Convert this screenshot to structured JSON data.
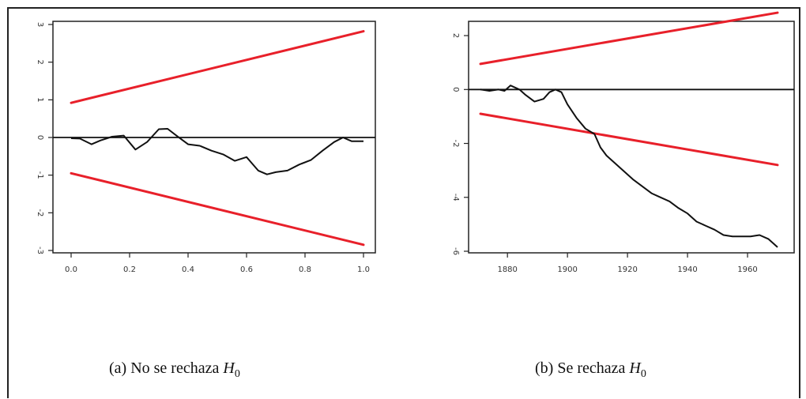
{
  "captions": {
    "a": {
      "prefix": "(a) No se rechaza ",
      "var": "H",
      "sub": "0"
    },
    "b": {
      "prefix": "(b) Se rechaza ",
      "var": "H",
      "sub": "0"
    }
  },
  "colors": {
    "band": "#e8202a",
    "process": "#111111",
    "axis": "#222222"
  },
  "chart_data": [
    {
      "type": "line",
      "xlim": [
        0,
        1
      ],
      "ylim": [
        -3,
        3
      ],
      "xticks": [
        0,
        0.2,
        0.4,
        0.6,
        0.8,
        1.0
      ],
      "xtick_labels": [
        "0.0",
        "0.2",
        "0.4",
        "0.6",
        "0.8",
        "1.0"
      ],
      "yticks": [
        -3,
        -2,
        -1,
        0,
        1,
        2,
        3
      ],
      "ytick_labels": [
        "-3",
        "-2",
        "-1",
        "0",
        "1",
        "2",
        "3"
      ],
      "hline": 0,
      "bands": [
        {
          "color": "red",
          "x": [
            0,
            1
          ],
          "y": [
            0.92,
            2.82
          ]
        },
        {
          "color": "red",
          "x": [
            0,
            1
          ],
          "y": [
            -0.95,
            -2.85
          ]
        }
      ],
      "series": [
        {
          "color": "black",
          "x": [
            0,
            0.03,
            0.07,
            0.1,
            0.14,
            0.18,
            0.22,
            0.26,
            0.3,
            0.33,
            0.36,
            0.4,
            0.44,
            0.48,
            0.52,
            0.56,
            0.6,
            0.62,
            0.64,
            0.67,
            0.7,
            0.74,
            0.78,
            0.82,
            0.86,
            0.9,
            0.93,
            0.96,
            1.0
          ],
          "y": [
            -0.02,
            -0.03,
            -0.18,
            -0.08,
            0.02,
            0.05,
            -0.32,
            -0.12,
            0.22,
            0.23,
            0.05,
            -0.18,
            -0.22,
            -0.35,
            -0.45,
            -0.62,
            -0.52,
            -0.7,
            -0.88,
            -0.98,
            -0.92,
            -0.88,
            -0.72,
            -0.6,
            -0.35,
            -0.12,
            0.0,
            -0.1,
            -0.1
          ]
        }
      ]
    },
    {
      "type": "line",
      "xlim": [
        1871,
        1970
      ],
      "ylim": [
        -6,
        2.5
      ],
      "xticks": [
        1880,
        1900,
        1920,
        1940,
        1960
      ],
      "xtick_labels": [
        "1880",
        "1900",
        "1920",
        "1940",
        "1960"
      ],
      "yticks": [
        -6,
        -4,
        -2,
        0,
        2
      ],
      "ytick_labels": [
        "-6",
        "-4",
        "-2",
        "0",
        "2"
      ],
      "hline": 0,
      "bands": [
        {
          "color": "red",
          "x": [
            1871,
            1970
          ],
          "y": [
            0.95,
            2.85
          ]
        },
        {
          "color": "red",
          "x": [
            1871,
            1970
          ],
          "y": [
            -0.9,
            -2.8
          ]
        }
      ],
      "series": [
        {
          "color": "black",
          "x": [
            1871,
            1874,
            1877,
            1879,
            1881,
            1884,
            1886,
            1889,
            1892,
            1894,
            1896,
            1898,
            1900,
            1903,
            1906,
            1909,
            1911,
            1913,
            1916,
            1919,
            1922,
            1925,
            1928,
            1931,
            1934,
            1937,
            1940,
            1943,
            1946,
            1949,
            1952,
            1955,
            1958,
            1961,
            1964,
            1967,
            1970
          ],
          "y": [
            0.0,
            -0.05,
            0.0,
            -0.05,
            0.15,
            0.0,
            -0.2,
            -0.45,
            -0.35,
            -0.1,
            0.0,
            -0.1,
            -0.55,
            -1.05,
            -1.45,
            -1.65,
            -2.15,
            -2.45,
            -2.75,
            -3.05,
            -3.35,
            -3.6,
            -3.85,
            -4.0,
            -4.15,
            -4.4,
            -4.6,
            -4.9,
            -5.05,
            -5.2,
            -5.4,
            -5.45,
            -5.45,
            -5.45,
            -5.4,
            -5.55,
            -5.85
          ]
        }
      ]
    }
  ]
}
